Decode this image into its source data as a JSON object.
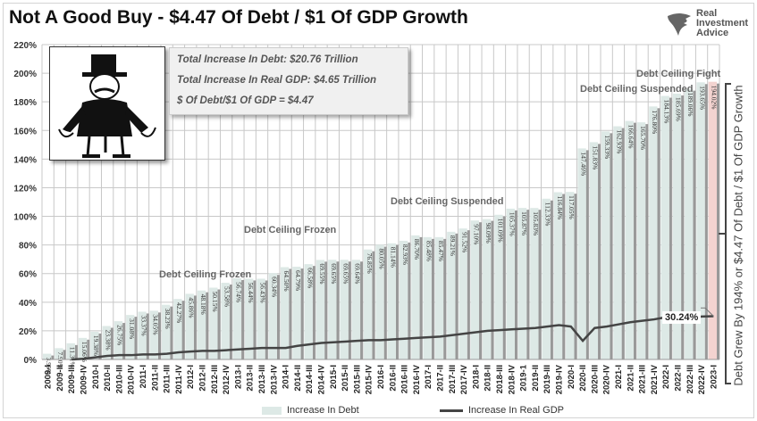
{
  "header": {
    "title": "Not A Good Buy - $4.47 Of Debt / $1 Of GDP Growth",
    "logo_text": [
      "Real",
      "Investment",
      "Advice"
    ]
  },
  "stats_box": {
    "line1": "Total Increase In Debt:  $20.76 Trillion",
    "line2": "Total Increase In Real GDP:  $4.65 Trillion",
    "line3": "$ Of Debt/$1 Of GDP = $4.47"
  },
  "side_annotation": "Debt Grew By 194% or $4.47 Of Debt / $1 Of GDP Growth",
  "annotations": [
    "Debt Ceiling Frozen",
    "Debt Ceiling Frozen",
    "Debt Ceiling Suspended",
    "Debt Ceiling Suspended",
    "Debt Ceiling Fight"
  ],
  "callout": "30.24%",
  "colors": {
    "bar": "#dde9e6",
    "bar_shadow": "#999999",
    "last_bar": "#f3d3d0",
    "line": "#444444"
  },
  "chart_data": {
    "type": "bar",
    "title": "Not A Good Buy - $4.47 Of Debt / $1 Of GDP Growth",
    "ylim": [
      0,
      220
    ],
    "yticks": [
      "0%",
      "20%",
      "40%",
      "60%",
      "80%",
      "100%",
      "120%",
      "140%",
      "160%",
      "180%",
      "200%",
      "220%"
    ],
    "categories": [
      "2009-I",
      "2009-II",
      "2009-III",
      "2009-IV",
      "2010-I",
      "2010-II",
      "2010-III",
      "2010-IV",
      "2011-I",
      "2011-II",
      "2011-III",
      "2011-IV",
      "2012-I",
      "2012-II",
      "2012-III",
      "2012-IV",
      "2013-I",
      "2013-II",
      "2013-III",
      "2013-IV",
      "2014-I",
      "2014-II",
      "2014-III",
      "2014-IV",
      "2015-I",
      "2015-II",
      "2015-III",
      "2015-IV",
      "2016-I",
      "2016-II",
      "2016-III",
      "2016-IV",
      "2017-I",
      "2017-II",
      "2017-III",
      "2017-IV",
      "2018-I",
      "2018-II",
      "2018-III",
      "2018-IV",
      "2019-1",
      "2019-II",
      "2019-III",
      "2019-IV",
      "2020-I",
      "2020-II",
      "2020-III",
      "2020-IV",
      "2021-I",
      "2021-II",
      "2021-III",
      "2021-IV",
      "2022-I",
      "2022-II",
      "2022-III",
      "2022-IV",
      "2023-I"
    ],
    "series": [
      {
        "name": "Increase In Debt",
        "type": "bar",
        "values": [
          3.99,
          7.9,
          11.31,
          15.06,
          19.38,
          23.38,
          26.75,
          31.08,
          33.37,
          34.05,
          38.23,
          42.27,
          45.86,
          48.18,
          50.15,
          53.58,
          56.74,
          56.44,
          56.43,
          60.34,
          64.5,
          64.79,
          66.58,
          69.55,
          69.65,
          69.65,
          69.64,
          76.85,
          80.05,
          81.14,
          82.93,
          86.7,
          85.48,
          85.47,
          89.21,
          91.52,
          97.1,
          98.09,
          101.09,
          105.37,
          105.87,
          105.83,
          112.33,
          116.84,
          117.05,
          147.46,
          151.83,
          159.33,
          162.93,
          166.64,
          165.7,
          176.8,
          184.13,
          185.69,
          189.06,
          193.65,
          194.02
        ],
        "labels": [
          "3.99%",
          "7.90%",
          "11.31%",
          "15.06%",
          "19.38%",
          "23.38%",
          "26.75%",
          "31.08%",
          "33.37%",
          "34.05%",
          "38.23%",
          "42.27%",
          "45.86%",
          "48.18%",
          "50.15%",
          "53.58%",
          "56.74%",
          "56.44%",
          "56.43%",
          "60.34%",
          "64.50%",
          "64.79%",
          "66.58%",
          "69.55%",
          "69.65%",
          "69.65%",
          "69.64%",
          "76.85%",
          "80.05%",
          "81.14%",
          "82.93%",
          "86.70%",
          "85.48%",
          "85.47%",
          "89.21%",
          "91.52%",
          "97.10%",
          "98.09%",
          "101.09%",
          "105.37%",
          "105.87%",
          "105.83%",
          "112.33%",
          "116.84%",
          "117.05%",
          "147.46%",
          "151.83%",
          "159.33%",
          "162.93%",
          "166.64%",
          "165.70%",
          "176.80%",
          "184.13%",
          "185.69%",
          "189.06%",
          "193.65%",
          "194.02%"
        ]
      },
      {
        "name": "Increase In Real GDP",
        "type": "line",
        "values": [
          null,
          null,
          0,
          0.5,
          1.5,
          2.5,
          3,
          3,
          3.5,
          3.5,
          4,
          5,
          5.5,
          6,
          6,
          6.5,
          7,
          7.5,
          8,
          8,
          8,
          9.5,
          10.5,
          11.5,
          12,
          12.5,
          13,
          13.5,
          13.5,
          14,
          14.5,
          15,
          15.5,
          16,
          17,
          18,
          19,
          20,
          20.5,
          21,
          21.5,
          22,
          23,
          24,
          23,
          13,
          22,
          23,
          24.5,
          26,
          27,
          28,
          29.5,
          29.5,
          29,
          30,
          30.24
        ]
      }
    ],
    "legend": [
      "Increase In Debt",
      "Increase In Real GDP"
    ],
    "legend_position": "bottom"
  }
}
